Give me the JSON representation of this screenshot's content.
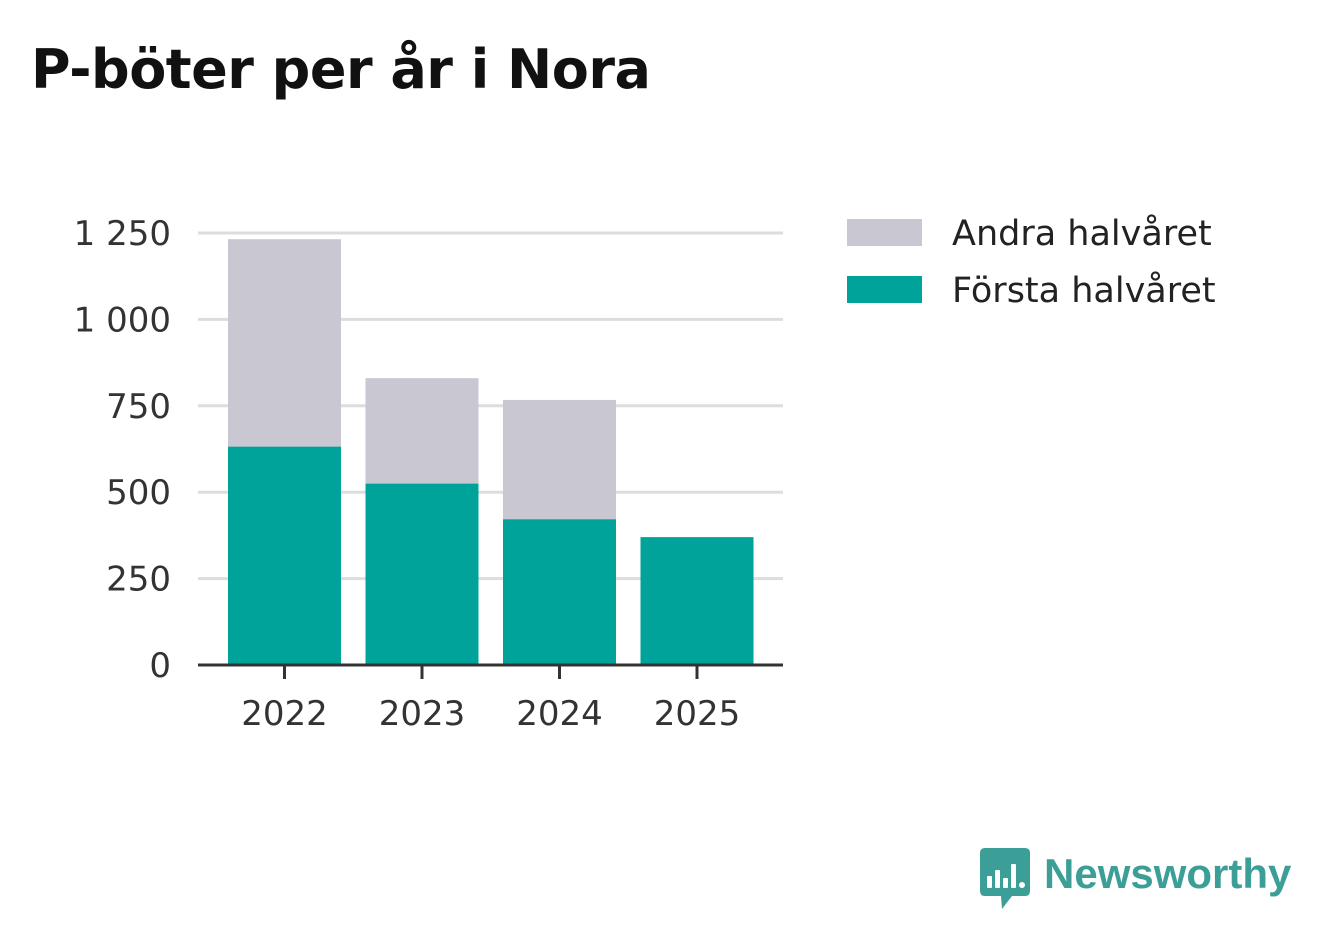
{
  "chart_data": {
    "type": "bar",
    "stacked": true,
    "title": "P-böter per år i Nora",
    "xlabel": "",
    "ylabel": "",
    "categories": [
      "2022",
      "2023",
      "2024",
      "2025"
    ],
    "ylim": [
      0,
      1250
    ],
    "yticks": [
      0,
      250,
      500,
      750,
      1000,
      1250
    ],
    "ytick_labels": [
      "0",
      "250",
      "500",
      "750",
      "1 000",
      "1 250"
    ],
    "series": [
      {
        "name": "Första halvåret",
        "color": "#00a39a",
        "values": [
          632,
          525,
          422,
          370
        ]
      },
      {
        "name": "Andra halvåret",
        "color": "#c8c7d2",
        "values": [
          600,
          305,
          345,
          0
        ]
      }
    ],
    "legend_order": [
      "Andra halvåret",
      "Första halvåret"
    ],
    "legend": "right",
    "grid": true
  },
  "brand": {
    "name": "Newsworthy",
    "color": "#3c9f97"
  }
}
